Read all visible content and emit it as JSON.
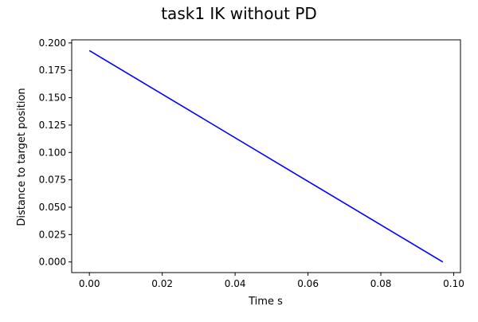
{
  "chart_data": {
    "type": "line",
    "title": "task1 IK without PD",
    "xlabel": "Time s",
    "ylabel": "Distance to target position",
    "xlim": [
      -0.00485,
      0.10185
    ],
    "ylim": [
      -0.0097,
      0.2028
    ],
    "grid": false,
    "x_ticks": [
      0.0,
      0.02,
      0.04,
      0.06,
      0.08,
      0.1
    ],
    "x_tick_labels": [
      "0.00",
      "0.02",
      "0.04",
      "0.06",
      "0.08",
      "0.10"
    ],
    "y_ticks": [
      0.0,
      0.025,
      0.05,
      0.075,
      0.1,
      0.125,
      0.15,
      0.175,
      0.2
    ],
    "y_tick_labels": [
      "0.000",
      "0.025",
      "0.050",
      "0.075",
      "0.100",
      "0.125",
      "0.150",
      "0.175",
      "0.200"
    ],
    "series": [
      {
        "color": "#0000ff",
        "x": [
          0.0,
          0.097
        ],
        "y": [
          0.193,
          0.0
        ]
      }
    ]
  }
}
